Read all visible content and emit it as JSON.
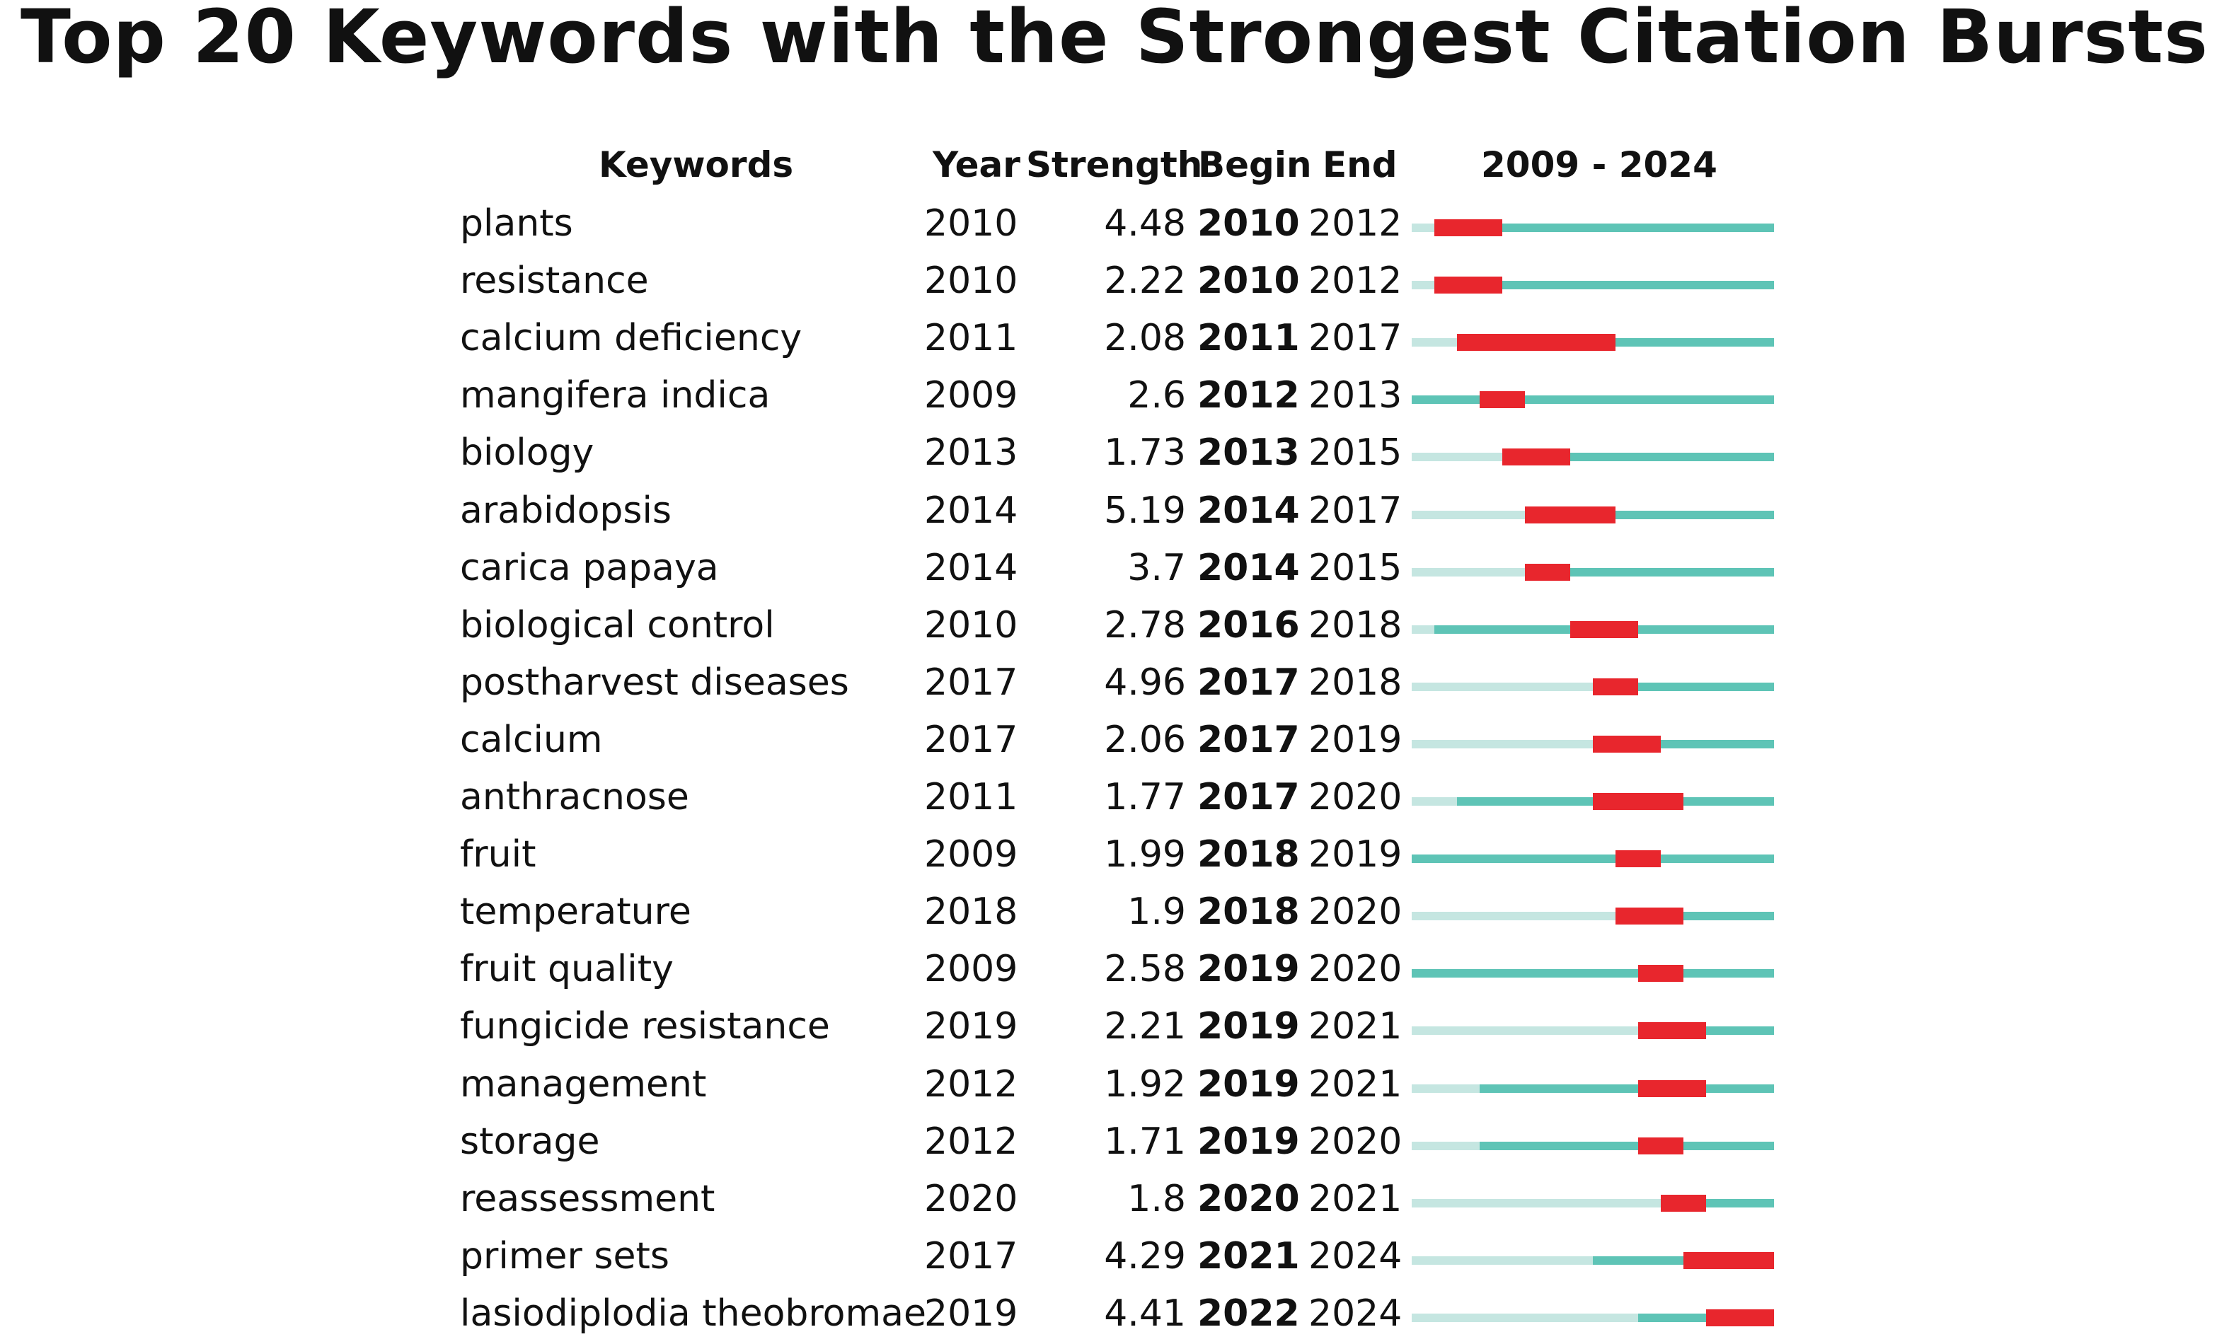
{
  "title": "Top 20 Keywords with the Strongest Citation Bursts",
  "headers": {
    "keywords": "Keywords",
    "year": "Year",
    "strength": "Strength",
    "begin": "Begin",
    "end": "End",
    "range": "2009 - 2024"
  },
  "colors": {
    "pre": "#c5e6e1",
    "active": "#5ec4b6",
    "burst": "#e8262d"
  },
  "chart_data": {
    "type": "table",
    "title": "Top 20 Keywords with the Strongest Citation Bursts",
    "timeline_start": 2009,
    "timeline_end": 2024,
    "columns": [
      "Keywords",
      "Year",
      "Strength",
      "Begin",
      "End",
      "2009 - 2024"
    ],
    "rows": [
      {
        "keyword": "plants",
        "year": 2010,
        "strength": "4.48",
        "begin": 2010,
        "end": 2012
      },
      {
        "keyword": "resistance",
        "year": 2010,
        "strength": "2.22",
        "begin": 2010,
        "end": 2012
      },
      {
        "keyword": "calcium deficiency",
        "year": 2011,
        "strength": "2.08",
        "begin": 2011,
        "end": 2017
      },
      {
        "keyword": "mangifera indica",
        "year": 2009,
        "strength": "2.6",
        "begin": 2012,
        "end": 2013
      },
      {
        "keyword": "biology",
        "year": 2013,
        "strength": "1.73",
        "begin": 2013,
        "end": 2015
      },
      {
        "keyword": "arabidopsis",
        "year": 2014,
        "strength": "5.19",
        "begin": 2014,
        "end": 2017
      },
      {
        "keyword": "carica papaya",
        "year": 2014,
        "strength": "3.7",
        "begin": 2014,
        "end": 2015
      },
      {
        "keyword": "biological control",
        "year": 2010,
        "strength": "2.78",
        "begin": 2016,
        "end": 2018
      },
      {
        "keyword": "postharvest diseases",
        "year": 2017,
        "strength": "4.96",
        "begin": 2017,
        "end": 2018
      },
      {
        "keyword": "calcium",
        "year": 2017,
        "strength": "2.06",
        "begin": 2017,
        "end": 2019
      },
      {
        "keyword": "anthracnose",
        "year": 2011,
        "strength": "1.77",
        "begin": 2017,
        "end": 2020
      },
      {
        "keyword": "fruit",
        "year": 2009,
        "strength": "1.99",
        "begin": 2018,
        "end": 2019
      },
      {
        "keyword": "temperature",
        "year": 2018,
        "strength": "1.9",
        "begin": 2018,
        "end": 2020
      },
      {
        "keyword": "fruit quality",
        "year": 2009,
        "strength": "2.58",
        "begin": 2019,
        "end": 2020
      },
      {
        "keyword": "fungicide resistance",
        "year": 2019,
        "strength": "2.21",
        "begin": 2019,
        "end": 2021
      },
      {
        "keyword": "management",
        "year": 2012,
        "strength": "1.92",
        "begin": 2019,
        "end": 2021
      },
      {
        "keyword": "storage",
        "year": 2012,
        "strength": "1.71",
        "begin": 2019,
        "end": 2020
      },
      {
        "keyword": "reassessment",
        "year": 2020,
        "strength": "1.8",
        "begin": 2020,
        "end": 2021
      },
      {
        "keyword": "primer sets",
        "year": 2017,
        "strength": "4.29",
        "begin": 2021,
        "end": 2024
      },
      {
        "keyword": "lasiodiplodia theobromae",
        "year": 2019,
        "strength": "4.41",
        "begin": 2022,
        "end": 2024
      }
    ]
  }
}
